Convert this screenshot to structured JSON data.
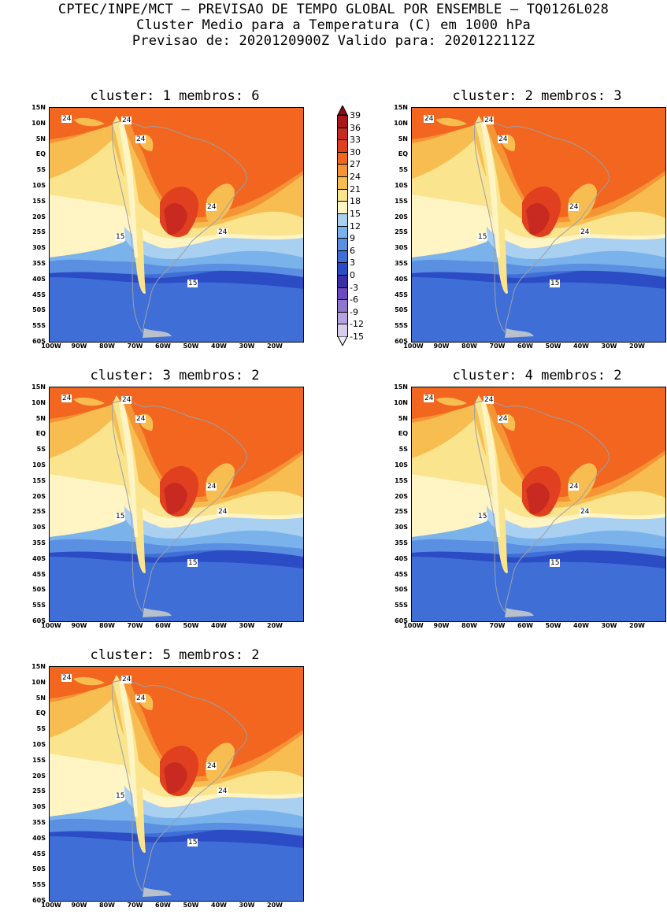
{
  "header": {
    "line1": "CPTEC/INPE/MCT – PREVISAO DE TEMPO GLOBAL POR ENSEMBLE – TQ0126L028",
    "line2": "Cluster Medio para a Temperatura (C) em 1000 hPa",
    "line3": "Previsao de: 2020120900Z   Valido para: 2020122112Z"
  },
  "panels": [
    {
      "title": "cluster: 1  membros: 6",
      "labels": [
        "24",
        "24",
        "24",
        "24",
        "24",
        "15",
        "15"
      ]
    },
    {
      "title": "cluster: 2  membros: 3",
      "labels": [
        "24",
        "24",
        "24",
        "24",
        "24",
        "15",
        "15"
      ]
    },
    {
      "title": "cluster: 3  membros: 2",
      "labels": [
        "24",
        "24",
        "24",
        "24",
        "24",
        "15",
        "15"
      ]
    },
    {
      "title": "cluster: 4  membros: 2",
      "labels": [
        "24",
        "24",
        "24",
        "24",
        "24",
        "15",
        "15"
      ]
    },
    {
      "title": "cluster: 5  membros: 2",
      "labels": [
        "24",
        "24",
        "24",
        "24",
        "24",
        "15",
        "15"
      ]
    }
  ],
  "lat_labels": [
    "15N",
    "10N",
    "5N",
    "EQ",
    "5S",
    "10S",
    "15S",
    "20S",
    "25S",
    "30S",
    "35S",
    "40S",
    "45S",
    "50S",
    "55S",
    "60S"
  ],
  "lon_labels": [
    "100W",
    "90W",
    "80W",
    "70W",
    "60W",
    "50W",
    "40W",
    "30W",
    "20W"
  ],
  "colorbar": {
    "labels": [
      "39",
      "36",
      "33",
      "30",
      "27",
      "24",
      "21",
      "18",
      "15",
      "12",
      "9",
      "6",
      "3",
      "0",
      "-3",
      "-6",
      "-9",
      "-12",
      "-15"
    ],
    "colors": [
      "#8b0c12",
      "#a81818",
      "#c82a22",
      "#e0401f",
      "#f2661f",
      "#f59434",
      "#f8bd51",
      "#fbe48e",
      "#fff4c4",
      "#a9cff1",
      "#7ab2eb",
      "#5a8fe2",
      "#3f6fd6",
      "#2b4cc4",
      "#3b2fa6",
      "#6a4bc0",
      "#8f77d0",
      "#b4a3de",
      "#d8cdee",
      "#f1ecf8"
    ]
  }
}
